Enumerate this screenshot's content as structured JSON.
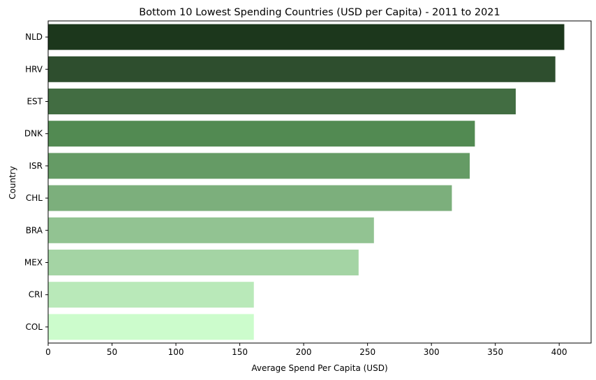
{
  "chart_data": {
    "type": "bar",
    "orientation": "horizontal",
    "title": "Bottom 10 Lowest Spending Countries (USD per Capita) - 2011 to 2021",
    "xlabel": "Average Spend Per Capita (USD)",
    "ylabel": "Country",
    "xlim": [
      0,
      425
    ],
    "xticks": [
      0,
      50,
      100,
      150,
      200,
      250,
      300,
      350,
      400
    ],
    "grid": false,
    "categories": [
      "NLD",
      "HRV",
      "EST",
      "DNK",
      "ISR",
      "CHL",
      "BRA",
      "MEX",
      "CRI",
      "COL"
    ],
    "values": [
      404,
      397,
      366,
      334,
      330,
      316,
      255,
      243,
      161,
      161
    ],
    "colors": [
      "#1c371c",
      "#2e4e2e",
      "#426d42",
      "#528a52",
      "#659b65",
      "#7caf7c",
      "#92c392",
      "#a4d4a4",
      "#b9e9b9",
      "#ccfccc"
    ]
  }
}
